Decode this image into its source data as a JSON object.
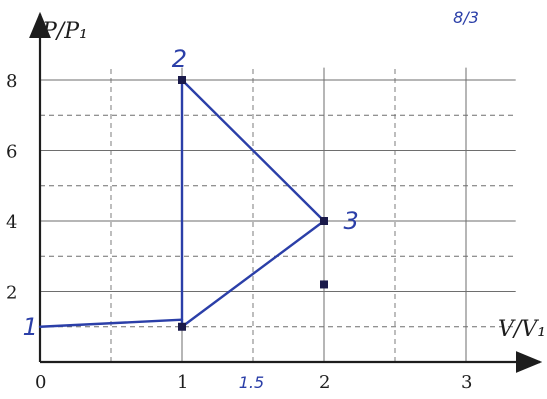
{
  "chart_data": {
    "type": "line",
    "xlabel": "V/V₁",
    "ylabel": "P/P₁",
    "x_ticks": [
      "0",
      "1",
      "2",
      "3"
    ],
    "y_ticks": [
      "2",
      "4",
      "6",
      "8"
    ],
    "xlim": [
      0,
      3.4
    ],
    "ylim": [
      0,
      9
    ],
    "grid": true,
    "points": [
      {
        "label": "1",
        "x": 1,
        "y": 1
      },
      {
        "label": "2",
        "x": 1,
        "y": 8
      },
      {
        "label": "3",
        "x": 2,
        "y": 4
      }
    ],
    "series": [
      {
        "values": [
          {
            "x": 0,
            "y": 1
          },
          {
            "x": 1,
            "y": 1.2
          }
        ]
      },
      {
        "values": [
          {
            "x": 1,
            "y": 1
          },
          {
            "x": 1,
            "y": 8
          },
          {
            "x": 2,
            "y": 4
          },
          {
            "x": 1,
            "y": 1
          }
        ]
      }
    ],
    "extra_points": [
      {
        "x": 2,
        "y": 2.2
      }
    ],
    "annotations": [
      {
        "text": "1",
        "x": -0.08,
        "y": 1
      },
      {
        "text": "2",
        "x": 0.97,
        "y": 8.6
      },
      {
        "text": "3",
        "x": 2.18,
        "y": 4
      },
      {
        "text": "1.5",
        "x": 1.47,
        "y": -0.45
      },
      {
        "text": "8/3",
        "x": 2.98,
        "y": 9.9
      }
    ]
  },
  "colors": {
    "axis": "#1d1d1d",
    "grid": "#6e6e6e",
    "ink": "#2b3fa8",
    "point": "#1a1a4a"
  }
}
